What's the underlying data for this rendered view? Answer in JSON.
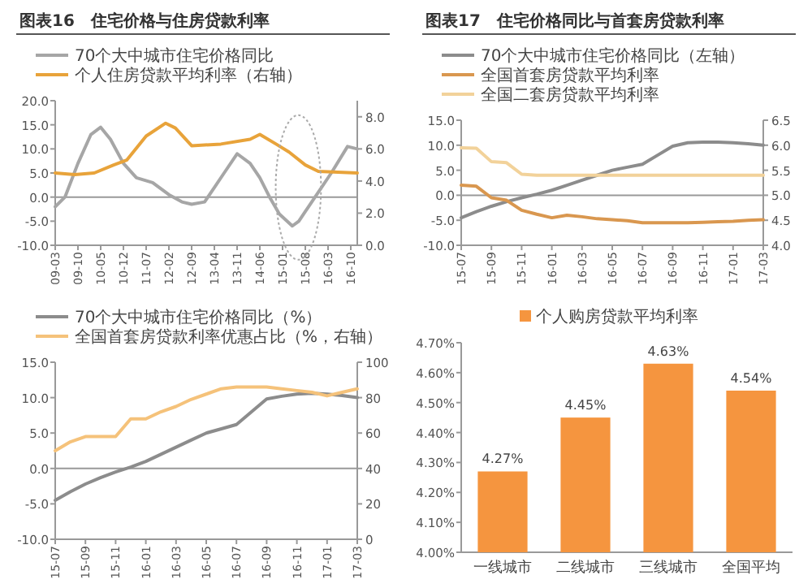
{
  "chart_data": [
    {
      "type": "line",
      "title": "图表16　住宅价格与住房贷款利率",
      "legend": "top",
      "xlim": [
        "2009-03",
        "2016-12"
      ],
      "xticks": [
        {
          "value": "2009-03",
          "label": "09-03"
        },
        {
          "value": "2009-10",
          "label": "09-10"
        },
        {
          "value": "2010-05",
          "label": "10-05"
        },
        {
          "value": "2010-12",
          "label": "10-12"
        },
        {
          "value": "2011-07",
          "label": "11-07"
        },
        {
          "value": "2012-02",
          "label": "12-02"
        },
        {
          "value": "2012-09",
          "label": "12-09"
        },
        {
          "value": "2013-04",
          "label": "13-04"
        },
        {
          "value": "2013-11",
          "label": "13-11"
        },
        {
          "value": "2014-06",
          "label": "14-06"
        },
        {
          "value": "2015-01",
          "label": "15-01"
        },
        {
          "value": "2015-08",
          "label": "15-08"
        },
        {
          "value": "2016-03",
          "label": "16-03"
        },
        {
          "value": "2016-10",
          "label": "16-10"
        }
      ],
      "ylim": [
        -10,
        20
      ],
      "yticks": [
        {
          "value": -10,
          "label": "-10.0"
        },
        {
          "value": -5,
          "label": "-5.0"
        },
        {
          "value": 0,
          "label": "0.0"
        },
        {
          "value": 5,
          "label": "5.0"
        },
        {
          "value": 10,
          "label": "10.0"
        },
        {
          "value": 15,
          "label": "15.0"
        },
        {
          "value": 20,
          "label": "20.0"
        }
      ],
      "y2lim": [
        0,
        9
      ],
      "y2ticks": [
        {
          "value": 0,
          "label": "0.0"
        },
        {
          "value": 2,
          "label": "2.0"
        },
        {
          "value": 4,
          "label": "4.0"
        },
        {
          "value": 6,
          "label": "6.0"
        },
        {
          "value": 8,
          "label": "8.0"
        }
      ],
      "series": [
        {
          "name": "70个大中城市住宅价格同比",
          "color": "#a6a6a6",
          "x": [
            "2009-03",
            "2009-06",
            "2009-10",
            "2010-02",
            "2010-05",
            "2010-08",
            "2010-12",
            "2011-04",
            "2011-09",
            "2012-02",
            "2012-06",
            "2012-09",
            "2013-01",
            "2013-04",
            "2013-07",
            "2013-11",
            "2014-03",
            "2014-06",
            "2014-09",
            "2014-12",
            "2015-04",
            "2015-06",
            "2015-08",
            "2015-11",
            "2016-04",
            "2016-09",
            "2016-12"
          ],
          "values": [
            -2,
            0,
            7,
            13,
            14.5,
            12,
            7,
            4,
            3,
            0.5,
            -1,
            -1.5,
            -1,
            2,
            5,
            9,
            7,
            4,
            0,
            -3.5,
            -6,
            -5,
            -3,
            0,
            5,
            10.5,
            10
          ]
        },
        {
          "name": "个人住房贷款平均利率（右轴）",
          "color": "#e8a33a",
          "axis": "y2",
          "x": [
            "2009-03",
            "2009-09",
            "2010-03",
            "2010-09",
            "2011-01",
            "2011-07",
            "2012-01",
            "2012-04",
            "2012-09",
            "2013-06",
            "2014-03",
            "2014-06",
            "2014-11",
            "2015-03",
            "2015-08",
            "2015-12",
            "2016-12"
          ],
          "values": [
            4.5,
            4.4,
            4.5,
            5.0,
            5.3,
            6.8,
            7.6,
            7.3,
            6.2,
            6.3,
            6.6,
            6.9,
            6.3,
            5.8,
            5.0,
            4.6,
            4.5
          ]
        }
      ]
    },
    {
      "type": "line",
      "title": "图表17　住宅价格同比与首套房贷款利率",
      "legend": "top",
      "categories": [
        "15-07",
        null,
        "15-09",
        null,
        "15-11",
        null,
        "16-01",
        null,
        "16-03",
        null,
        "16-05",
        null,
        "16-07",
        null,
        "16-09",
        null,
        "16-11",
        null,
        "17-01",
        null,
        "17-03"
      ],
      "ylim": [
        -10,
        15
      ],
      "yticks": [
        {
          "value": -10,
          "label": "-10.0"
        },
        {
          "value": -5,
          "label": "-5.0"
        },
        {
          "value": 0,
          "label": "0.0"
        },
        {
          "value": 5,
          "label": "5.0"
        },
        {
          "value": 10,
          "label": "10.0"
        },
        {
          "value": 15,
          "label": "15.0"
        }
      ],
      "y2lim": [
        4,
        6.5
      ],
      "y2ticks": [
        {
          "value": 4,
          "label": "4.0"
        },
        {
          "value": 4.5,
          "label": "4.5"
        },
        {
          "value": 5,
          "label": "5.0"
        },
        {
          "value": 5.5,
          "label": "5.5"
        },
        {
          "value": 6,
          "label": "6.0"
        },
        {
          "value": 6.5,
          "label": "6.5"
        }
      ],
      "series": [
        {
          "name": "70个大中城市住宅价格同比（左轴）",
          "color": "#8c8c8c",
          "values": [
            -4.5,
            -3.3,
            -2.2,
            -1.3,
            -0.5,
            0.2,
            1,
            2,
            3,
            4,
            5,
            5.6,
            6.2,
            8,
            9.8,
            10.5,
            10.6,
            10.6,
            10.5,
            10.3,
            10
          ]
        },
        {
          "name": "全国首套房贷款平均利率",
          "color": "#d9974f",
          "axis": "y2",
          "values": [
            5.2,
            5.18,
            4.95,
            4.9,
            4.7,
            4.62,
            4.55,
            4.6,
            4.57,
            4.53,
            4.51,
            4.49,
            4.45,
            4.45,
            4.45,
            4.45,
            4.46,
            4.47,
            4.48,
            4.5,
            4.51
          ]
        },
        {
          "name": "全国二套房贷款平均利率",
          "color": "#f2d29a",
          "axis": "y2",
          "values": [
            5.95,
            5.94,
            5.67,
            5.65,
            5.42,
            5.4,
            5.4,
            5.4,
            5.4,
            5.4,
            5.4,
            5.4,
            5.4,
            5.4,
            5.4,
            5.4,
            5.4,
            5.4,
            5.4,
            5.4,
            5.4
          ]
        }
      ]
    },
    {
      "type": "line",
      "legend": "top",
      "categories": [
        "15-07",
        null,
        "15-09",
        null,
        "15-11",
        null,
        "16-01",
        null,
        "16-03",
        null,
        "16-05",
        null,
        "16-07",
        null,
        "16-09",
        null,
        "16-11",
        null,
        "17-01",
        null,
        "17-03"
      ],
      "ylim": [
        -10,
        15
      ],
      "yticks": [
        {
          "value": -10,
          "label": "-10.0"
        },
        {
          "value": -5,
          "label": "-5.0"
        },
        {
          "value": 0,
          "label": "0.0"
        },
        {
          "value": 5,
          "label": "5.0"
        },
        {
          "value": 10,
          "label": "10.0"
        },
        {
          "value": 15,
          "label": "15.0"
        }
      ],
      "y2lim": [
        0,
        100
      ],
      "y2ticks": [
        0,
        20,
        40,
        60,
        80,
        100
      ],
      "series": [
        {
          "name": "70个大中城市住宅价格同比（%）",
          "color": "#8c8c8c",
          "values": [
            -4.5,
            -3.3,
            -2.2,
            -1.3,
            -0.5,
            0.2,
            1,
            2,
            3,
            4,
            5,
            5.6,
            6.2,
            8,
            9.8,
            10.2,
            10.5,
            10.6,
            10.5,
            10.3,
            10
          ]
        },
        {
          "name": "全国首套房贷款利率优惠占比（%，右轴）",
          "color": "#f5c27a",
          "axis": "y2",
          "values": [
            50,
            55,
            58,
            58,
            58,
            68,
            68,
            72,
            75,
            79,
            82,
            85,
            86,
            86,
            86,
            85,
            84,
            83,
            81,
            83,
            85
          ]
        }
      ]
    },
    {
      "type": "bar",
      "legend": "top",
      "categories": [
        "一线城市",
        "二线城市",
        "三线城市",
        "全国平均"
      ],
      "ylim": [
        4.0,
        4.7
      ],
      "yticks": [
        {
          "value": 4.0,
          "label": "4.00%"
        },
        {
          "value": 4.1,
          "label": "4.10%"
        },
        {
          "value": 4.2,
          "label": "4.20%"
        },
        {
          "value": 4.3,
          "label": "4.30%"
        },
        {
          "value": 4.4,
          "label": "4.40%"
        },
        {
          "value": 4.5,
          "label": "4.50%"
        },
        {
          "value": 4.6,
          "label": "4.60%"
        },
        {
          "value": 4.7,
          "label": "4.70%"
        }
      ],
      "series": [
        {
          "name": "个人购房贷款平均利率",
          "color": "#f5953f",
          "values": [
            4.27,
            4.45,
            4.63,
            4.54
          ],
          "value_labels": [
            "4.27%",
            "4.45%",
            "4.63%",
            "4.54%"
          ]
        }
      ]
    }
  ]
}
